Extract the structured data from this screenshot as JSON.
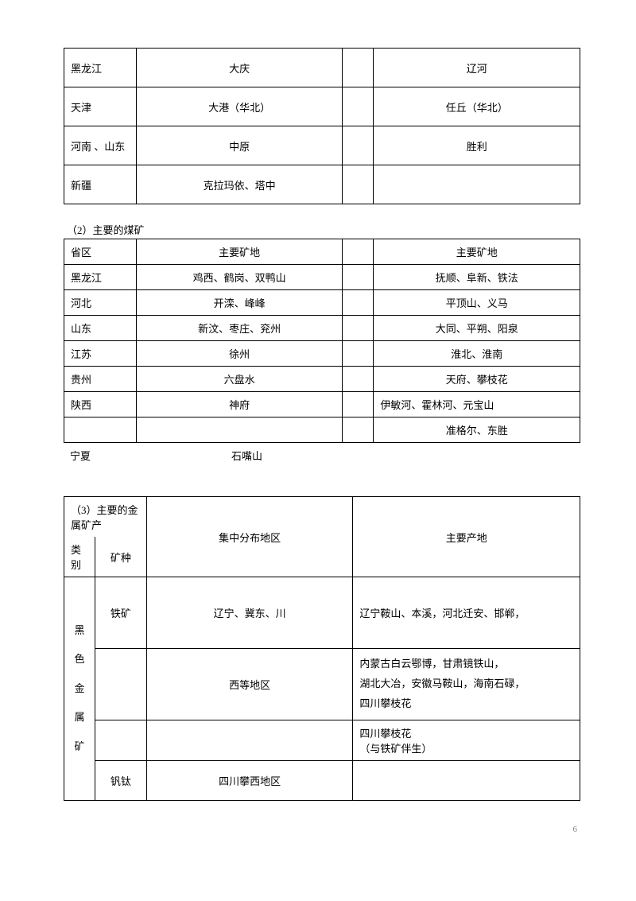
{
  "table1": {
    "rows": [
      {
        "c1": "黑龙江",
        "c2": "大庆",
        "c3": "",
        "c4": "辽河"
      },
      {
        "c1": "天津",
        "c2": "大港（华北）",
        "c3": "",
        "c4": "任丘（华北）"
      },
      {
        "c1": "河南 、山东",
        "c2": "中原",
        "c3": "",
        "c4": "胜利"
      },
      {
        "c1": "新疆",
        "c2": "克拉玛依、塔中",
        "c3": "",
        "c4": ""
      }
    ]
  },
  "section2": {
    "caption": "（2）主要的煤矿",
    "header": {
      "c1": "省区",
      "c2": "主要矿地",
      "c3": "",
      "c4": "主要矿地"
    },
    "rows": [
      {
        "c1": "黑龙江",
        "c2": "鸡西、鹤岗、双鸭山",
        "c3": "",
        "c4": "抚顺、阜新、铁法"
      },
      {
        "c1": "河北",
        "c2": "开滦、峰峰",
        "c3": "",
        "c4": "平顶山、义马"
      },
      {
        "c1": "山东",
        "c2": "新汶、枣庄、兖州",
        "c3": "",
        "c4": "大同、平朔、阳泉"
      },
      {
        "c1": "江苏",
        "c2": "徐州",
        "c3": "",
        "c4": "淮北、淮南"
      },
      {
        "c1": "贵州",
        "c2": "六盘水",
        "c3": "",
        "c4": "天府、攀枝花"
      },
      {
        "c1": "陕西",
        "c2": "神府",
        "c3": "",
        "c4": "伊敏河、霍林河、元宝山"
      },
      {
        "c1": "",
        "c2": "",
        "c3": "",
        "c4": "准格尔、东胜"
      }
    ],
    "footer": {
      "c1": "宁夏",
      "c2": "石嘴山"
    }
  },
  "section3": {
    "caption": "（3）主要的金属矿产",
    "header": {
      "c1": "类别",
      "c2": "矿种",
      "c3": "集中分布地区",
      "c4": "主要产地"
    },
    "group": "黑色金属矿",
    "rows": [
      {
        "c2": "铁矿",
        "c3": "辽宁、冀东、川",
        "c4": "辽宁鞍山、本溪，河北迁安、邯郸，"
      },
      {
        "c2": "",
        "c3": "西等地区",
        "c4": "内蒙古白云鄂博，甘肃镜铁山，\n湖北大冶，安徽马鞍山，海南石碌，\n四川攀枝花"
      },
      {
        "c2": "",
        "c3": "",
        "c4": "四川攀枝花\n（与铁矿伴生）"
      },
      {
        "c2": "钒钛",
        "c3": "四川攀西地区",
        "c4": ""
      }
    ]
  },
  "pageNum": "6"
}
